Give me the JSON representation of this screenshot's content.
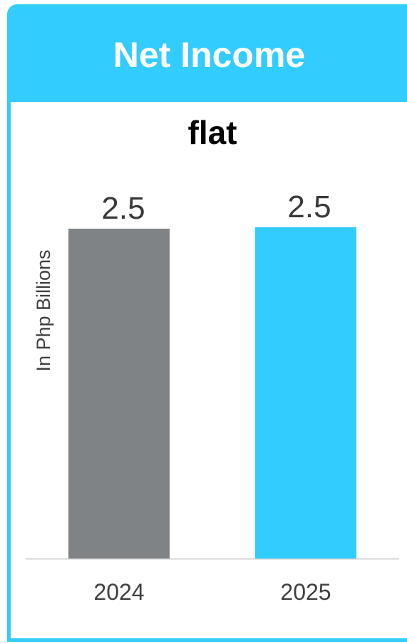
{
  "header": {
    "title": "Net Income"
  },
  "chart_data": {
    "type": "bar",
    "title": "Net Income",
    "subtitle": "flat",
    "categories": [
      "2024",
      "2025"
    ],
    "values": [
      2.5,
      2.5
    ],
    "value_labels": [
      "2.5",
      "2.5"
    ],
    "ylabel": "In Php Billions",
    "xlabel": "",
    "ylim": [
      0,
      2.5
    ],
    "grid": false,
    "legend": "none",
    "bar_colors": [
      "#808386",
      "#33ccff"
    ],
    "accent_color": "#33ccff"
  }
}
